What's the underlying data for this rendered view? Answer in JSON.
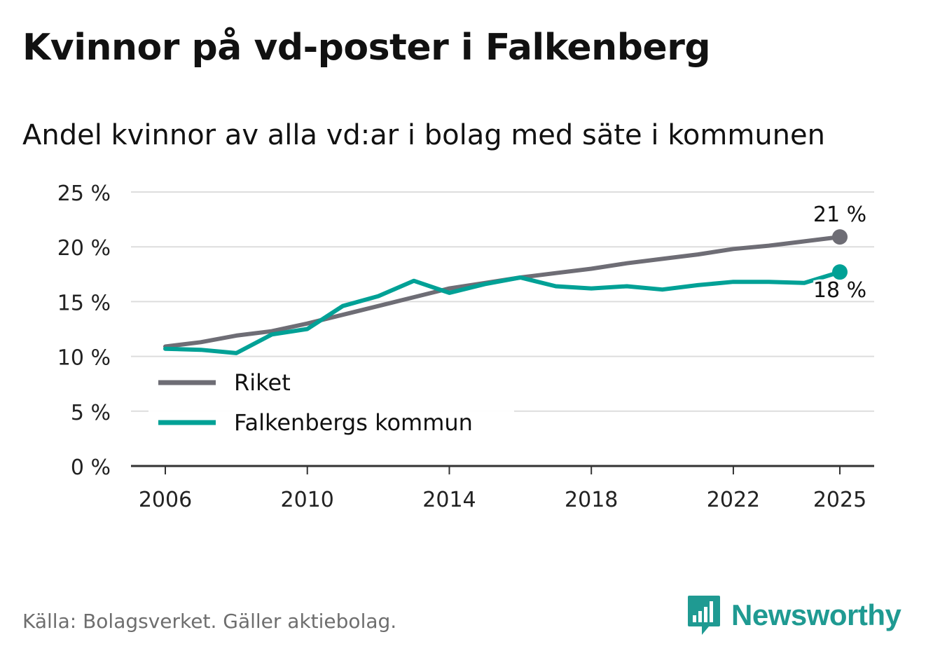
{
  "title": "Kvinnor på vd-poster i Falkenberg",
  "subtitle": "Andel kvinnor av alla vd:ar i bolag med säte i kommunen",
  "source": "Källa: Bolagsverket. Gäller aktiebolag.",
  "brand": {
    "name": "Newsworthy",
    "icon": "newsworthy-logo-icon"
  },
  "colors": {
    "riket": "#6e6d75",
    "falkenberg": "#00a196",
    "grid": "#dddddd",
    "axis": "#333333"
  },
  "chart_data": {
    "type": "line",
    "title": "Kvinnor på vd-poster i Falkenberg",
    "subtitle": "Andel kvinnor av alla vd:ar i bolag med säte i kommunen",
    "xlabel": "",
    "ylabel": "",
    "x": [
      2006,
      2007,
      2008,
      2009,
      2010,
      2011,
      2012,
      2013,
      2014,
      2015,
      2016,
      2017,
      2018,
      2019,
      2020,
      2021,
      2022,
      2023,
      2024,
      2025
    ],
    "xlim": [
      2005,
      2025.9
    ],
    "ylim": [
      0,
      25
    ],
    "y_ticks": [
      {
        "value": 0,
        "label": "0 %"
      },
      {
        "value": 5,
        "label": "5 %"
      },
      {
        "value": 10,
        "label": "10 %"
      },
      {
        "value": 15,
        "label": "15 %"
      },
      {
        "value": 20,
        "label": "20 %"
      },
      {
        "value": 25,
        "label": "25 %"
      }
    ],
    "x_ticks": [
      {
        "value": 2006,
        "label": "2006"
      },
      {
        "value": 2010,
        "label": "2010"
      },
      {
        "value": 2014,
        "label": "2014"
      },
      {
        "value": 2018,
        "label": "2018"
      },
      {
        "value": 2022,
        "label": "2022"
      },
      {
        "value": 2025,
        "label": "2025"
      }
    ],
    "grid": true,
    "legend_position": "bottom-left",
    "series": [
      {
        "name": "Riket",
        "color": "#6e6d75",
        "values": [
          10.9,
          11.3,
          11.9,
          12.3,
          13.0,
          13.8,
          14.6,
          15.4,
          16.2,
          16.7,
          17.2,
          17.6,
          18.0,
          18.5,
          18.9,
          19.3,
          19.8,
          20.1,
          20.5,
          20.9
        ],
        "end_label": "21 %"
      },
      {
        "name": "Falkenbergs kommun",
        "color": "#00a196",
        "values": [
          10.7,
          10.6,
          10.3,
          12.0,
          12.5,
          14.6,
          15.5,
          16.9,
          15.8,
          16.6,
          17.2,
          16.4,
          16.2,
          16.4,
          16.1,
          16.5,
          16.8,
          16.8,
          16.7,
          17.7
        ],
        "end_label": "18 %"
      }
    ]
  }
}
